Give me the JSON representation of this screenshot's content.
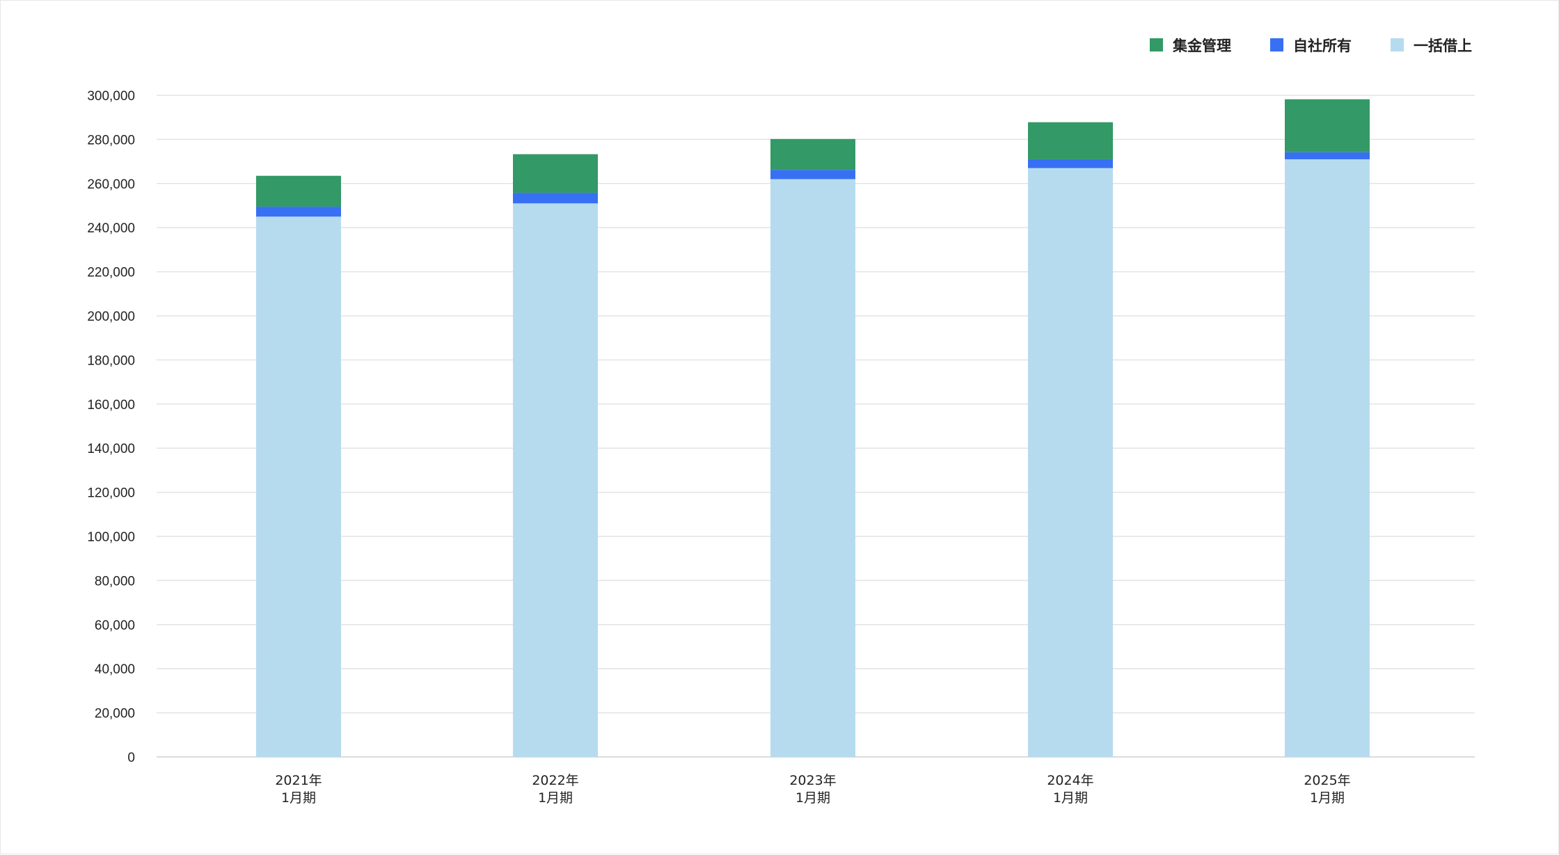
{
  "chart_data": {
    "type": "bar",
    "stacked": true,
    "categories": [
      [
        "2021年",
        "1月期"
      ],
      [
        "2022年",
        "1月期"
      ],
      [
        "2023年",
        "1月期"
      ],
      [
        "2024年",
        "1月期"
      ],
      [
        "2025年",
        "1月期"
      ]
    ],
    "series": [
      {
        "name": "一括借上",
        "color": "#b6dbef",
        "values": [
          245000,
          251000,
          262000,
          267000,
          271000
        ]
      },
      {
        "name": "自社所有",
        "color": "#3770f2",
        "values": [
          4500,
          4800,
          4200,
          4000,
          3200
        ]
      },
      {
        "name": "集金管理",
        "color": "#339966",
        "values": [
          14000,
          17500,
          14000,
          16800,
          24000
        ]
      }
    ],
    "legend_order": [
      "集金管理",
      "自社所有",
      "一括借上"
    ],
    "legend_position": "top-right",
    "ylim": [
      0,
      300000
    ],
    "y_ticks": [
      "0",
      "20,000",
      "40,000",
      "60,000",
      "80,000",
      "100,000",
      "120,000",
      "140,000",
      "160,000",
      "180,000",
      "200,000",
      "220,000",
      "240,000",
      "260,000",
      "280,000",
      "300,000"
    ],
    "y_tick_values": [
      0,
      20000,
      40000,
      60000,
      80000,
      100000,
      120000,
      140000,
      160000,
      180000,
      200000,
      220000,
      240000,
      260000,
      280000,
      300000
    ],
    "grid": true,
    "title": "",
    "xlabel": "",
    "ylabel": ""
  }
}
